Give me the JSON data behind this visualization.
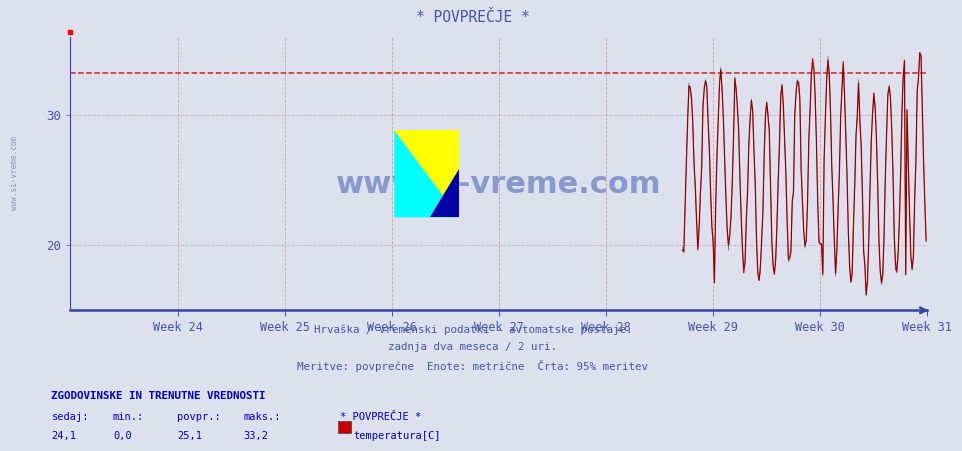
{
  "title": "* POVPREČJE *",
  "background_color": "#dde0ed",
  "plot_background_color": "#dde0ed",
  "xlabel_weeks": [
    "Week 24",
    "Week 25",
    "Week 26",
    "Week 27",
    "Week 28",
    "Week 29",
    "Week 30",
    "Week 31"
  ],
  "ylabel_ticks": [
    20,
    30
  ],
  "ylim": [
    15,
    36
  ],
  "xlim": [
    0,
    672
  ],
  "yline_95pct": 33.2,
  "subtitle_lines": [
    "Hrvaška / vremenski podatki - avtomatske postaje.",
    "zadnja dva meseca / 2 uri.",
    "Meritve: povprečne  Enote: metrične  Črta: 95% meritev"
  ],
  "legend_title": "ZGODOVINSKE IN TRENUTNE VREDNOSTI",
  "legend_headers": [
    "sedaj:",
    "min.:",
    "povpr.:",
    "maks.:",
    "* POVPREČJE *"
  ],
  "legend_values": [
    "24,1",
    "0,0",
    "25,1",
    "33,2"
  ],
  "legend_series": "temperatura[C]",
  "watermark_text": "www.si-vreme.com",
  "watermark_color": "#8899cc",
  "title_color": "#4455aa",
  "axis_color": "#3344aa",
  "grid_color_v": "#cc8888",
  "grid_color_h": "#ccaaaa",
  "line_color": "#cc0000",
  "line_color_dark": "#111111",
  "ylabel_color": "#4455aa",
  "week_label_color": "#4455aa",
  "subtitle_color": "#4455aa",
  "dashed_line_color": "#cc0000",
  "logo_yellow": "#ffff00",
  "logo_cyan": "#00ffff",
  "logo_blue": "#0000aa"
}
